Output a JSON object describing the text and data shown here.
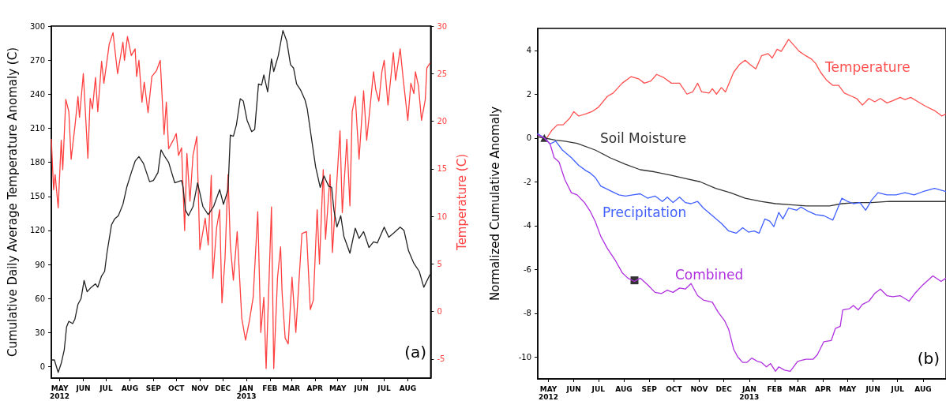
{
  "chart_data": [
    {
      "type": "line",
      "ylabel": "Cumulative Daily Average Temperature Anomaly (C)",
      "y2label": "Temperature (C)",
      "annotations": [
        "(a)"
      ],
      "xlim": [
        "2012-04-20",
        "2013-08-31"
      ],
      "xticks": [
        {
          "value": "2012-05-01",
          "label": "MAY\n2012"
        },
        {
          "value": "2012-06-01",
          "label": "JUN"
        },
        {
          "value": "2012-07-01",
          "label": "JUL"
        },
        {
          "value": "2012-08-01",
          "label": "AUG"
        },
        {
          "value": "2012-09-01",
          "label": "SEP"
        },
        {
          "value": "2012-10-01",
          "label": "OCT"
        },
        {
          "value": "2012-11-01",
          "label": "NOV"
        },
        {
          "value": "2012-12-01",
          "label": "DEC"
        },
        {
          "value": "2013-01-01",
          "label": "JAN\n2013"
        },
        {
          "value": "2013-02-01",
          "label": "FEB"
        },
        {
          "value": "2013-03-01",
          "label": "MAR"
        },
        {
          "value": "2013-04-01",
          "label": "APR"
        },
        {
          "value": "2013-05-01",
          "label": "MAY"
        },
        {
          "value": "2013-06-01",
          "label": "JUN"
        },
        {
          "value": "2013-07-01",
          "label": "JUL"
        },
        {
          "value": "2013-08-01",
          "label": "AUG"
        }
      ],
      "ylim": [
        -10,
        300
      ],
      "yticks": [
        0,
        30,
        60,
        90,
        120,
        150,
        180,
        210,
        240,
        270,
        300
      ],
      "y2lim": [
        -7,
        30
      ],
      "y2ticks": [
        -5,
        0,
        5,
        10,
        15,
        20,
        25,
        30
      ],
      "series": [
        {
          "color": "#222222",
          "x": [
            "2012-04-20",
            "2012-04-24",
            "2012-04-29",
            "2012-05-03",
            "2012-05-07",
            "2012-05-10",
            "2012-05-13",
            "2012-05-18",
            "2012-05-21",
            "2012-05-25",
            "2012-05-29",
            "2012-06-02",
            "2012-06-06",
            "2012-06-10",
            "2012-06-17",
            "2012-06-20",
            "2012-06-25",
            "2012-06-29",
            "2012-07-02",
            "2012-07-08",
            "2012-07-12",
            "2012-07-17",
            "2012-07-23",
            "2012-07-28",
            "2012-08-03",
            "2012-08-08",
            "2012-08-13",
            "2012-08-19",
            "2012-08-27",
            "2012-09-01",
            "2012-09-07",
            "2012-09-11",
            "2012-09-16",
            "2012-09-21",
            "2012-09-29",
            "2012-10-08",
            "2012-10-10",
            "2012-10-13",
            "2012-10-17",
            "2012-10-23",
            "2012-10-29",
            "2012-11-05",
            "2012-11-12",
            "2012-11-19",
            "2012-11-27",
            "2012-12-02",
            "2012-12-08",
            "2012-12-11",
            "2012-12-15",
            "2012-12-19",
            "2012-12-24",
            "2012-12-28",
            "2013-01-02",
            "2013-01-08",
            "2013-01-12",
            "2013-01-17",
            "2013-01-21",
            "2013-01-24",
            "2013-01-29",
            "2013-02-03",
            "2013-02-06",
            "2013-02-12",
            "2013-02-18",
            "2013-02-23",
            "2013-02-28",
            "2013-03-04",
            "2013-03-08",
            "2013-03-13",
            "2013-03-19",
            "2013-03-22",
            "2013-03-28",
            "2013-04-02",
            "2013-04-08",
            "2013-04-13",
            "2013-04-19",
            "2013-04-23",
            "2013-04-26",
            "2013-04-30",
            "2013-05-05",
            "2013-05-09",
            "2013-05-17",
            "2013-05-24",
            "2013-05-29",
            "2013-06-04",
            "2013-06-11",
            "2013-06-17",
            "2013-06-22",
            "2013-07-01",
            "2013-07-07",
            "2013-07-14",
            "2013-07-22",
            "2013-07-27",
            "2013-08-02",
            "2013-08-09",
            "2013-08-16",
            "2013-08-22",
            "2013-08-30"
          ],
          "values": [
            6,
            6,
            -5,
            3,
            15,
            35,
            40,
            38,
            42,
            55,
            60,
            76,
            66,
            69,
            73,
            70,
            80,
            84,
            100,
            125,
            130,
            133,
            143,
            158,
            171,
            181,
            185,
            179,
            163,
            164,
            171,
            191,
            185,
            180,
            162,
            164,
            158,
            138,
            133,
            141,
            162,
            141,
            134,
            141,
            156,
            143,
            156,
            204,
            203,
            213,
            236,
            234,
            217,
            207,
            209,
            249,
            248,
            257,
            242,
            271,
            260,
            274,
            296,
            287,
            266,
            263,
            249,
            244,
            235,
            227,
            199,
            176,
            158,
            168,
            159,
            158,
            138,
            123,
            133,
            115,
            100,
            122,
            113,
            119,
            105,
            110,
            109,
            123,
            114,
            118,
            123,
            120,
            102,
            91,
            84,
            70,
            81
          ]
        },
        {
          "color": "#ff4040",
          "axis": "y2",
          "x": [
            "2012-04-20",
            "2012-04-23",
            "2012-04-25",
            "2012-04-29",
            "2012-05-03",
            "2012-05-05",
            "2012-05-09",
            "2012-05-13",
            "2012-05-16",
            "2012-05-21",
            "2012-05-25",
            "2012-05-27",
            "2012-06-01",
            "2012-06-07",
            "2012-06-10",
            "2012-06-13",
            "2012-06-17",
            "2012-06-20",
            "2012-06-25",
            "2012-06-28",
            "2012-07-02",
            "2012-07-05",
            "2012-07-10",
            "2012-07-16",
            "2012-07-23",
            "2012-07-25",
            "2012-07-29",
            "2012-08-03",
            "2012-08-08",
            "2012-08-10",
            "2012-08-13",
            "2012-08-17",
            "2012-08-20",
            "2012-08-25",
            "2012-08-30",
            "2012-09-05",
            "2012-09-10",
            "2012-09-15",
            "2012-09-18",
            "2012-09-21",
            "2012-09-27",
            "2012-10-01",
            "2012-10-04",
            "2012-10-08",
            "2012-10-12",
            "2012-10-15",
            "2012-10-19",
            "2012-10-23",
            "2012-10-28",
            "2012-11-01",
            "2012-11-08",
            "2012-11-12",
            "2012-11-16",
            "2012-11-18",
            "2012-11-23",
            "2012-11-27",
            "2012-11-30",
            "2012-12-04",
            "2012-12-08",
            "2012-12-11",
            "2012-12-15",
            "2012-12-20",
            "2012-12-26",
            "2012-12-31",
            "2013-01-05",
            "2013-01-10",
            "2013-01-16",
            "2013-01-20",
            "2013-01-24",
            "2013-01-27",
            "2013-02-03",
            "2013-02-06",
            "2013-02-11",
            "2013-02-15",
            "2013-02-17",
            "2013-02-21",
            "2013-02-25",
            "2013-03-02",
            "2013-03-07",
            "2013-03-15",
            "2013-03-21",
            "2013-03-26",
            "2013-03-30",
            "2013-04-04",
            "2013-04-07",
            "2013-04-12",
            "2013-04-15",
            "2013-04-21",
            "2013-04-24",
            "2013-05-04",
            "2013-05-07",
            "2013-05-13",
            "2013-05-17",
            "2013-05-20",
            "2013-05-24",
            "2013-05-29",
            "2013-06-04",
            "2013-06-08",
            "2013-06-11",
            "2013-06-17",
            "2013-06-20",
            "2013-06-24",
            "2013-06-28",
            "2013-07-01",
            "2013-07-06",
            "2013-07-13",
            "2013-07-16",
            "2013-07-22",
            "2013-07-26",
            "2013-08-01",
            "2013-08-05",
            "2013-08-09",
            "2013-08-11",
            "2013-08-15",
            "2013-08-19",
            "2013-08-24",
            "2013-08-26",
            "2013-08-30"
          ],
          "values": [
            18.1,
            12.8,
            14.4,
            10.9,
            18.0,
            14.9,
            22.3,
            21.0,
            16.0,
            19.5,
            22.6,
            20.4,
            25.0,
            16.1,
            22.4,
            21.3,
            24.6,
            21.0,
            26.3,
            24.0,
            26.3,
            28.1,
            29.3,
            25.0,
            28.3,
            26.4,
            28.9,
            26.9,
            27.6,
            24.7,
            26.4,
            22.0,
            24.1,
            20.9,
            24.7,
            25.3,
            26.4,
            18.6,
            22.0,
            17.1,
            18.0,
            18.7,
            16.4,
            17.2,
            8.5,
            16.6,
            11.6,
            16.4,
            18.4,
            6.5,
            9.8,
            7.0,
            14.3,
            3.5,
            8.8,
            10.7,
            0.9,
            5.5,
            14.4,
            7.0,
            3.3,
            8.4,
            -0.7,
            -3.0,
            -1.0,
            1.5,
            10.5,
            -2.2,
            1.5,
            -6.0,
            11.0,
            -6.0,
            3.6,
            6.8,
            1.9,
            -2.8,
            -3.4,
            3.6,
            -2.2,
            8.2,
            8.4,
            0.2,
            1.2,
            10.7,
            5.0,
            14.9,
            7.6,
            14.4,
            6.2,
            19.0,
            10.4,
            18.1,
            11.1,
            21.0,
            22.6,
            16.0,
            23.2,
            18.0,
            20.3,
            25.2,
            23.3,
            22.1,
            25.2,
            26.4,
            21.7,
            27.2,
            24.3,
            27.6,
            24.4,
            20.1,
            24.0,
            22.9,
            25.2,
            23.7,
            20.1,
            22.3,
            25.6,
            26.1
          ]
        }
      ]
    },
    {
      "type": "line",
      "ylabel": "Normalized Cumulative Anomaly",
      "annotations": [
        "(b)"
      ],
      "xlim": [
        "2012-04-18",
        "2013-08-29"
      ],
      "xticks": [
        {
          "value": "2012-05-01",
          "label": "MAY\n2012"
        },
        {
          "value": "2012-06-01",
          "label": "JUN"
        },
        {
          "value": "2012-07-01",
          "label": "JUL"
        },
        {
          "value": "2012-08-01",
          "label": "AUG"
        },
        {
          "value": "2012-09-01",
          "label": "SEP"
        },
        {
          "value": "2012-10-01",
          "label": "OCT"
        },
        {
          "value": "2012-11-01",
          "label": "NOV"
        },
        {
          "value": "2012-12-01",
          "label": "DEC"
        },
        {
          "value": "2013-01-01",
          "label": "JAN\n2013"
        },
        {
          "value": "2013-02-01",
          "label": "FEB"
        },
        {
          "value": "2013-03-01",
          "label": "MAR"
        },
        {
          "value": "2013-04-01",
          "label": "APR"
        },
        {
          "value": "2013-05-01",
          "label": "MAY"
        },
        {
          "value": "2013-06-01",
          "label": "JUN"
        },
        {
          "value": "2013-07-01",
          "label": "JUL"
        },
        {
          "value": "2013-08-01",
          "label": "AUG"
        }
      ],
      "ylim": [
        -11,
        5
      ],
      "yticks": [
        -10,
        -8,
        -6,
        -4,
        -2,
        0,
        2,
        4
      ],
      "series": [
        {
          "name": "Temperature",
          "color": "#ff5050",
          "x": [
            "2012-04-29",
            "2012-05-05",
            "2012-05-12",
            "2012-05-19",
            "2012-05-27",
            "2012-06-01",
            "2012-06-07",
            "2012-06-16",
            "2012-06-23",
            "2012-07-01",
            "2012-07-12",
            "2012-07-19",
            "2012-07-30",
            "2012-08-10",
            "2012-08-19",
            "2012-08-26",
            "2012-09-03",
            "2012-09-10",
            "2012-09-19",
            "2012-09-28",
            "2012-10-08",
            "2012-10-17",
            "2012-10-24",
            "2012-10-30",
            "2012-11-04",
            "2012-11-13",
            "2012-11-17",
            "2012-11-22",
            "2012-11-28",
            "2012-12-03",
            "2012-12-13",
            "2012-12-20",
            "2012-12-27",
            "2013-01-02",
            "2013-01-09",
            "2013-01-16",
            "2013-01-24",
            "2013-01-29",
            "2013-02-04",
            "2013-02-09",
            "2013-02-18",
            "2013-02-24",
            "2013-03-03",
            "2013-03-11",
            "2013-03-18",
            "2013-03-23",
            "2013-03-29",
            "2013-04-05",
            "2013-04-13",
            "2013-04-20",
            "2013-04-27",
            "2013-05-06",
            "2013-05-12",
            "2013-05-19",
            "2013-05-27",
            "2013-06-03",
            "2013-06-10",
            "2013-06-18",
            "2013-06-25",
            "2013-07-04",
            "2013-07-10",
            "2013-07-17",
            "2013-07-26",
            "2013-08-04",
            "2013-08-15",
            "2013-08-24",
            "2013-08-29"
          ],
          "values": [
            0,
            0.34,
            0.6,
            0.6,
            0.9,
            1.2,
            1.0,
            1.1,
            1.2,
            1.4,
            1.9,
            2.05,
            2.5,
            2.8,
            2.7,
            2.5,
            2.6,
            2.9,
            2.75,
            2.5,
            2.5,
            2.0,
            2.1,
            2.5,
            2.1,
            2.05,
            2.25,
            2.0,
            2.3,
            2.1,
            3.0,
            3.35,
            3.55,
            3.35,
            3.15,
            3.75,
            3.85,
            3.65,
            4.05,
            3.95,
            4.5,
            4.25,
            3.95,
            3.75,
            3.6,
            3.4,
            3.0,
            2.65,
            2.4,
            2.4,
            2.05,
            1.9,
            1.8,
            1.5,
            1.8,
            1.65,
            1.8,
            1.6,
            1.7,
            1.85,
            1.75,
            1.85,
            1.65,
            1.45,
            1.25,
            1.0,
            1.1
          ]
        },
        {
          "name": "Soil Moisture",
          "color": "#333333",
          "x": [
            "2012-04-18",
            "2012-04-26",
            "2012-05-10",
            "2012-05-21",
            "2012-06-05",
            "2012-06-27",
            "2012-07-15",
            "2012-08-03",
            "2012-08-21",
            "2012-09-08",
            "2012-09-27",
            "2012-10-15",
            "2012-11-02",
            "2012-11-21",
            "2012-12-09",
            "2012-12-27",
            "2013-01-15",
            "2013-02-02",
            "2013-02-20",
            "2013-03-11",
            "2013-03-29",
            "2013-04-09",
            "2013-04-24",
            "2013-05-12",
            "2013-05-30",
            "2013-06-21",
            "2013-07-13",
            "2013-08-04",
            "2013-08-29"
          ],
          "values": [
            0.05,
            0,
            -0.1,
            -0.15,
            -0.25,
            -0.55,
            -0.9,
            -1.2,
            -1.45,
            -1.55,
            -1.7,
            -1.85,
            -2.0,
            -2.3,
            -2.5,
            -2.75,
            -2.9,
            -3.0,
            -3.05,
            -3.1,
            -3.1,
            -3.1,
            -3.0,
            -2.95,
            -2.95,
            -2.9,
            -2.9,
            -2.9,
            -2.9
          ]
        },
        {
          "name": "Precipitation",
          "color": "#4060ff",
          "x": [
            "2012-04-18",
            "2012-04-26",
            "2012-05-03",
            "2012-05-10",
            "2012-05-18",
            "2012-05-29",
            "2012-06-07",
            "2012-06-16",
            "2012-06-21",
            "2012-06-27",
            "2012-07-04",
            "2012-07-15",
            "2012-07-26",
            "2012-08-03",
            "2012-08-12",
            "2012-08-21",
            "2012-08-30",
            "2012-09-08",
            "2012-09-17",
            "2012-09-23",
            "2012-09-30",
            "2012-10-08",
            "2012-10-15",
            "2012-10-22",
            "2012-10-30",
            "2012-11-06",
            "2012-11-17",
            "2012-11-28",
            "2012-12-07",
            "2012-12-16",
            "2012-12-24",
            "2012-12-31",
            "2013-01-07",
            "2013-01-13",
            "2013-01-20",
            "2013-01-26",
            "2013-01-31",
            "2013-02-06",
            "2013-02-11",
            "2013-02-18",
            "2013-02-28",
            "2013-03-05",
            "2013-03-14",
            "2013-03-23",
            "2013-04-02",
            "2013-04-13",
            "2013-04-18",
            "2013-04-24",
            "2013-05-01",
            "2013-05-08",
            "2013-05-16",
            "2013-05-23",
            "2013-05-30",
            "2013-06-07",
            "2013-06-18",
            "2013-06-29",
            "2013-07-10",
            "2013-07-21",
            "2013-08-01",
            "2013-08-15",
            "2013-08-29"
          ],
          "values": [
            0.2,
            0.0,
            -0.27,
            -0.15,
            -0.55,
            -0.9,
            -1.25,
            -1.5,
            -1.6,
            -1.8,
            -2.2,
            -2.4,
            -2.6,
            -2.65,
            -2.6,
            -2.55,
            -2.75,
            -2.65,
            -2.9,
            -2.7,
            -2.95,
            -2.7,
            -2.95,
            -3.0,
            -2.9,
            -3.2,
            -3.55,
            -3.9,
            -4.25,
            -4.35,
            -4.1,
            -4.3,
            -4.25,
            -4.35,
            -3.7,
            -3.8,
            -4.05,
            -3.4,
            -3.7,
            -3.2,
            -3.3,
            -3.15,
            -3.35,
            -3.5,
            -3.55,
            -3.75,
            -3.3,
            -2.75,
            -2.9,
            -3.0,
            -2.95,
            -3.3,
            -2.85,
            -2.5,
            -2.6,
            -2.6,
            -2.5,
            -2.6,
            -2.45,
            -2.3,
            -2.45
          ]
        },
        {
          "name": "Combined",
          "color": "#b030e0",
          "x": [
            "2012-04-18",
            "2012-04-26",
            "2012-05-03",
            "2012-05-08",
            "2012-05-14",
            "2012-05-21",
            "2012-05-29",
            "2012-06-05",
            "2012-06-14",
            "2012-06-21",
            "2012-06-27",
            "2012-07-04",
            "2012-07-12",
            "2012-07-21",
            "2012-07-30",
            "2012-08-06",
            "2012-08-14",
            "2012-08-21",
            "2012-08-30",
            "2012-09-08",
            "2012-09-16",
            "2012-09-23",
            "2012-09-30",
            "2012-10-08",
            "2012-10-15",
            "2012-10-22",
            "2012-10-30",
            "2012-11-06",
            "2012-11-17",
            "2012-11-24",
            "2012-12-02",
            "2012-12-07",
            "2012-12-13",
            "2012-12-18",
            "2012-12-24",
            "2012-12-29",
            "2013-01-04",
            "2013-01-11",
            "2013-01-16",
            "2013-01-22",
            "2013-01-27",
            "2013-02-02",
            "2013-02-06",
            "2013-02-13",
            "2013-02-20",
            "2013-03-01",
            "2013-03-11",
            "2013-03-20",
            "2013-03-25",
            "2013-04-02",
            "2013-04-11",
            "2013-04-16",
            "2013-04-22",
            "2013-04-25",
            "2013-05-03",
            "2013-05-08",
            "2013-05-14",
            "2013-05-19",
            "2013-05-27",
            "2013-06-03",
            "2013-06-10",
            "2013-06-18",
            "2013-06-25",
            "2013-07-04",
            "2013-07-15",
            "2013-07-22",
            "2013-08-01",
            "2013-08-13",
            "2013-08-23",
            "2013-08-29"
          ],
          "values": [
            0.15,
            0,
            -0.27,
            -0.9,
            -1.1,
            -1.9,
            -2.5,
            -2.6,
            -2.95,
            -3.35,
            -3.8,
            -4.5,
            -5.05,
            -5.55,
            -6.15,
            -6.4,
            -6.55,
            -6.4,
            -6.7,
            -7.05,
            -7.1,
            -6.95,
            -7.05,
            -6.85,
            -6.9,
            -6.65,
            -7.2,
            -7.4,
            -7.5,
            -7.95,
            -8.35,
            -8.75,
            -9.65,
            -10.0,
            -10.25,
            -10.25,
            -10.05,
            -10.2,
            -10.25,
            -10.45,
            -10.3,
            -10.65,
            -10.45,
            -10.6,
            -10.65,
            -10.2,
            -10.1,
            -10.1,
            -9.9,
            -9.3,
            -9.25,
            -8.7,
            -8.6,
            -7.85,
            -7.8,
            -7.65,
            -7.85,
            -7.6,
            -7.45,
            -7.1,
            -6.9,
            -7.2,
            -7.25,
            -7.2,
            -7.45,
            -7.1,
            -6.7,
            -6.3,
            -6.55,
            -6.4
          ]
        },
        {
          "type": "scatter",
          "marker": "triangle",
          "color": "#000000",
          "x": [
            "2012-04-26"
          ],
          "values": [
            0
          ]
        },
        {
          "type": "scatter",
          "marker": "square",
          "color": "#000000",
          "x": [
            "2012-08-14"
          ],
          "values": [
            -6.5
          ]
        }
      ]
    }
  ]
}
